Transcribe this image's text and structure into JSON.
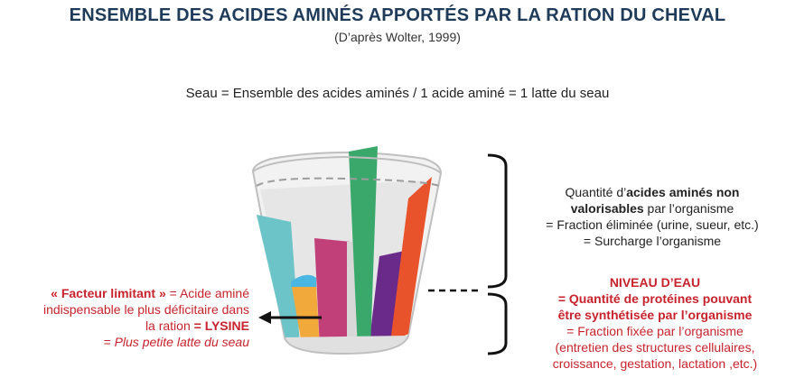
{
  "header": {
    "title": "ENSEMBLE DES ACIDES AMINÉS APPORTÉS PAR LA RATION DU CHEVAL",
    "subtitle": "(D’après Wolter, 1999)"
  },
  "legend": "Seau = Ensemble des acides aminés  /  1 acide aminé = 1 latte du seau",
  "right_top": {
    "line1_pre": "Quantité d’",
    "line1_bold": "acides aminés non",
    "line2_bold": "valorisables",
    "line2_post": " par l’organisme",
    "line3": "= Fraction éliminée (urine, sueur, etc.)",
    "line4": "= Surcharge l’organisme"
  },
  "right_bottom": {
    "line1": "NIVEAU D’EAU",
    "line2": "= Quantité de protéines pouvant",
    "line3": "être synthétisée par l’organisme",
    "line4": "= Fraction fixée par l’organisme",
    "line5": "(entretien des structures cellulaires,",
    "line6": "croissance, gestation, lactation ,etc.)"
  },
  "left": {
    "line1_bold": "« Facteur limitant »",
    "line1_post": " = Acide aminé",
    "line2": "indispensable le plus déficitaire dans",
    "line3_pre": "la ration ",
    "line3_bold": "= LYSINE",
    "line4": "= Plus petite latte du seau"
  },
  "colors": {
    "title": "#1f3b5a",
    "red": "#c8232c",
    "teal": "#6cc4c8",
    "orange_stave": "#f2a93b",
    "magenta": "#c2407a",
    "green": "#3aa86b",
    "purple": "#6a2a8a",
    "red_stave": "#e8532c",
    "water": "#4ab6e2"
  }
}
